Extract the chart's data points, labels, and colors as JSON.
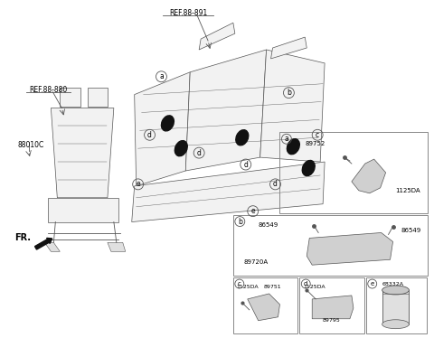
{
  "bg_color": "#ffffff",
  "border_color": "#888888",
  "line_color": "#555555",
  "text_color": "#000000",
  "labels": {
    "ref_88_891": "REF.88-891",
    "ref_88_880": "REF.88-880",
    "part_88010C": "88010C",
    "fr": "FR.",
    "part_89752": "89752",
    "part_1125DA_a": "1125DA",
    "part_86549_1": "86549",
    "part_86549_2": "86549",
    "part_89720A": "89720A",
    "part_1125DA_c": "1125DA",
    "part_89751": "89751",
    "part_1125DA_d": "1125DA",
    "part_89795": "89795",
    "part_68332A": "68332A"
  }
}
